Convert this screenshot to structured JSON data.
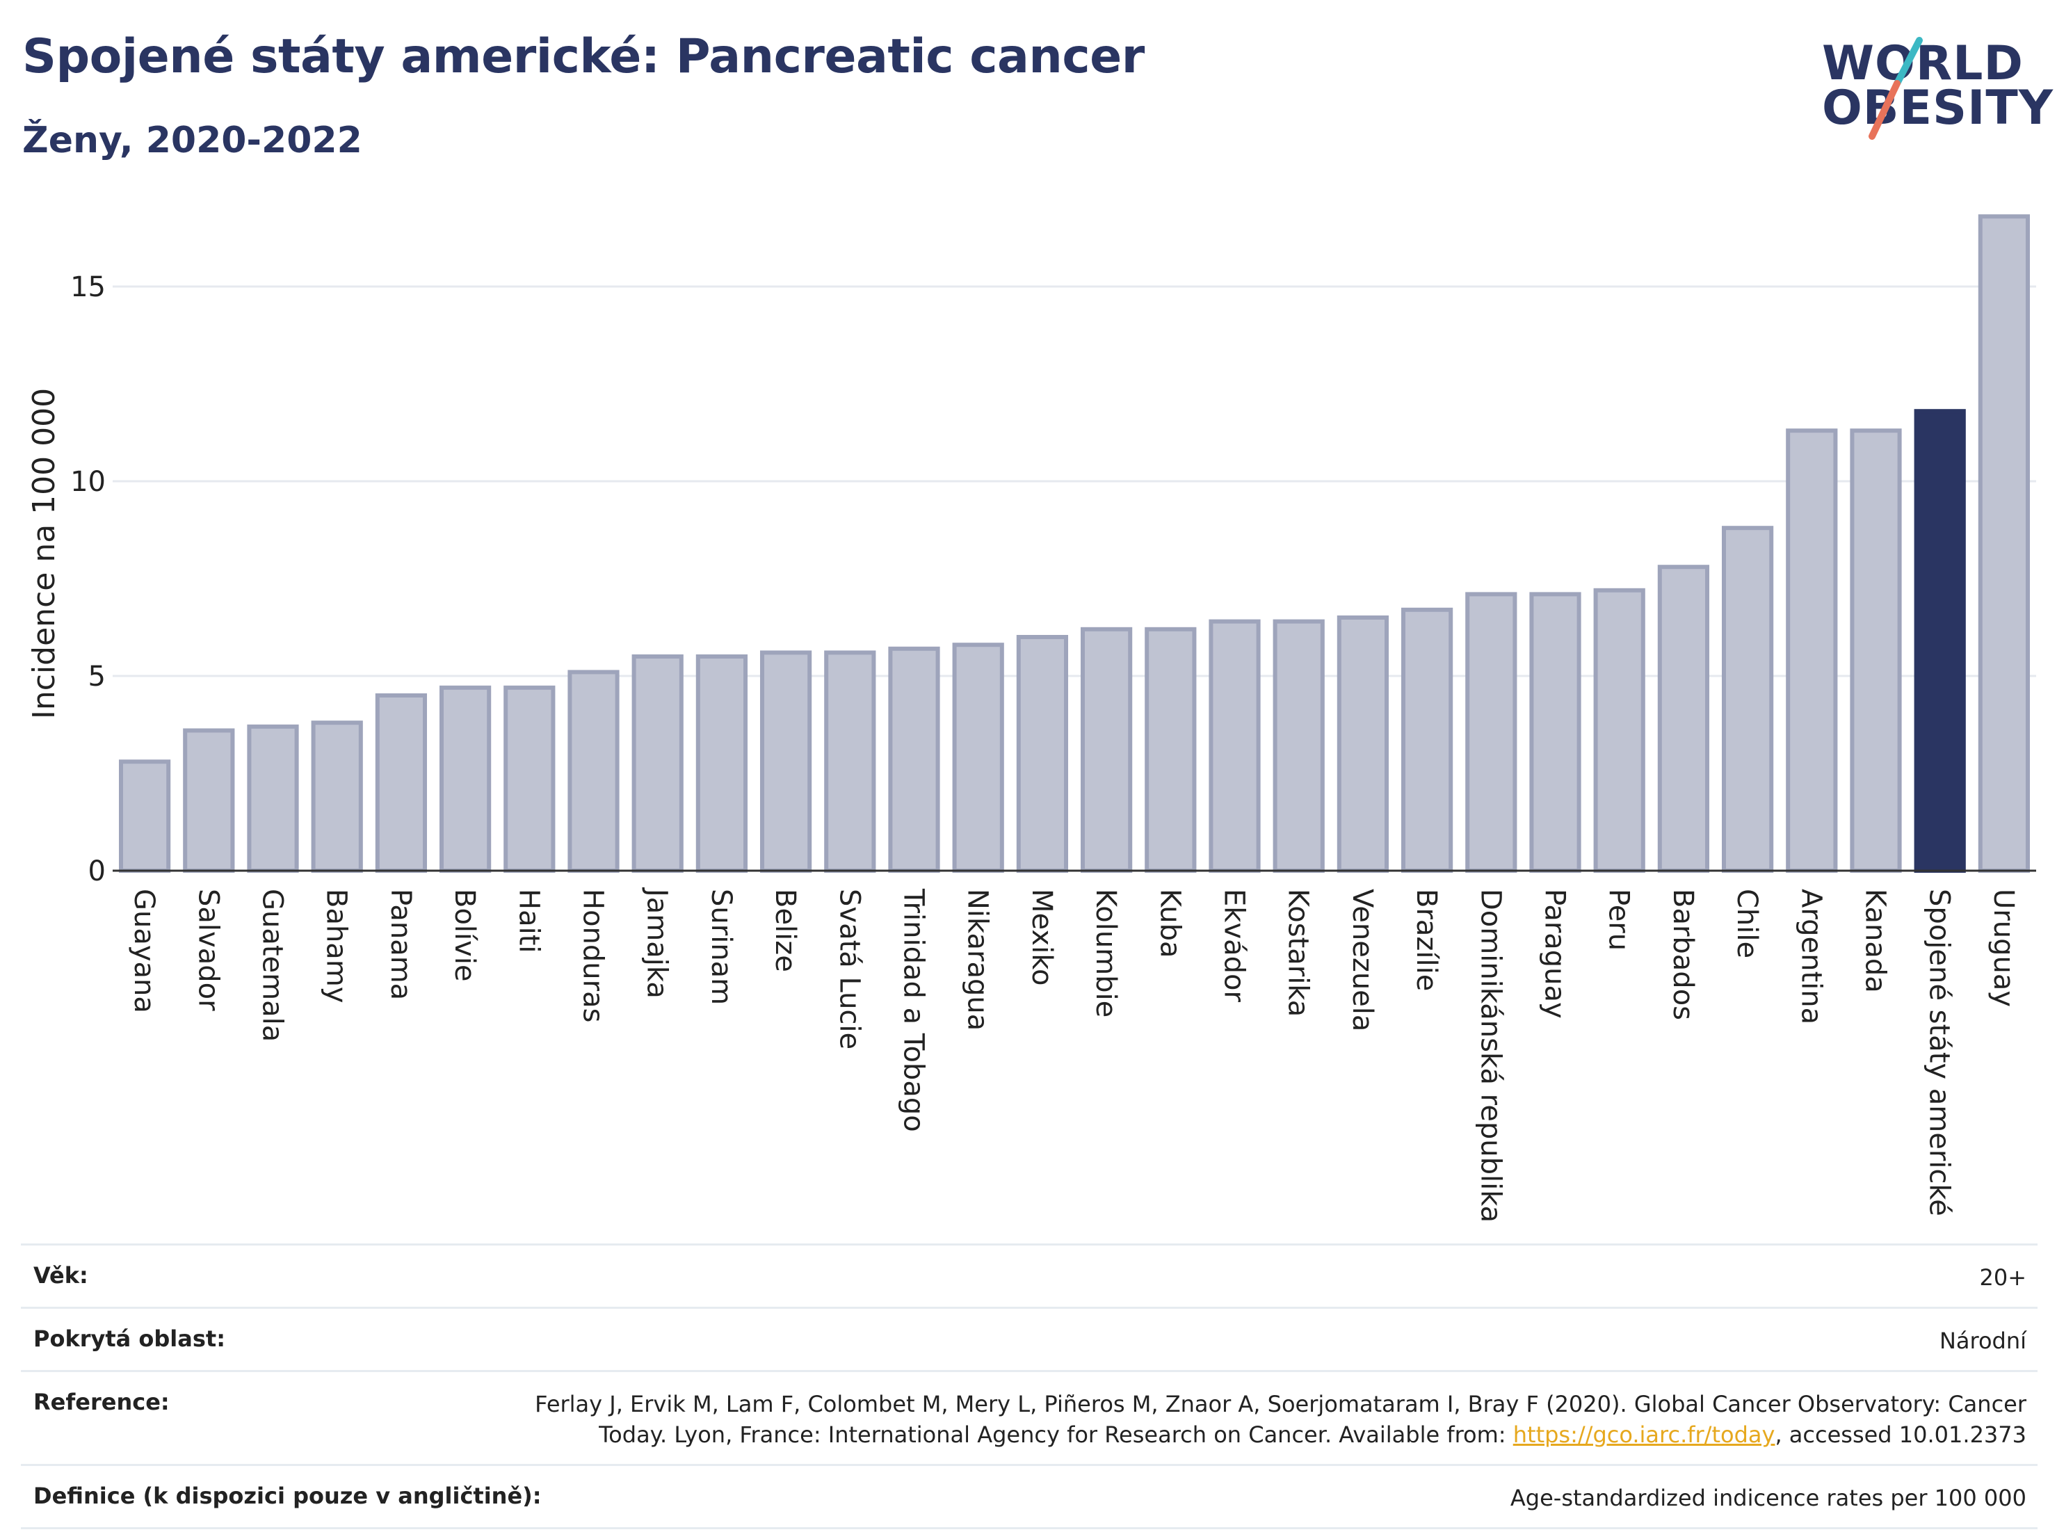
{
  "header": {
    "title": "Spojené státy americké: Pancreatic cancer",
    "subtitle": "Ženy, 2020-2022"
  },
  "logo": {
    "line1": "WORLD",
    "line2": "OBESITY",
    "slash_colors": [
      "#3cb8c4",
      "#e8735a"
    ]
  },
  "colors": {
    "bar_default": "#bfc3d2",
    "bar_border": "#9ea4bb",
    "bar_highlight": "#2a3562",
    "gridline": "#e6e9ef"
  },
  "chart_data": {
    "type": "bar",
    "categories": [
      "Guayana",
      "Salvador",
      "Guatemala",
      "Bahamy",
      "Panama",
      "Bolívie",
      "Haiti",
      "Honduras",
      "Jamajka",
      "Surinam",
      "Belize",
      "Svatá Lucie",
      "Trinidad a Tobago",
      "Nikaragua",
      "Mexiko",
      "Kolumbie",
      "Kuba",
      "Ekvádor",
      "Kostarika",
      "Venezuela",
      "Brazílie",
      "Dominikánská republika",
      "Paraguay",
      "Peru",
      "Barbados",
      "Chile",
      "Argentina",
      "Kanada",
      "Spojené státy americké",
      "Uruguay"
    ],
    "values": [
      2.8,
      3.6,
      3.7,
      3.8,
      4.5,
      4.7,
      4.7,
      5.1,
      5.5,
      5.5,
      5.6,
      5.6,
      5.7,
      5.8,
      6.0,
      6.2,
      6.2,
      6.4,
      6.4,
      6.5,
      6.7,
      7.1,
      7.1,
      7.2,
      7.8,
      8.8,
      11.3,
      11.3,
      11.8,
      16.8
    ],
    "highlight": "Spojené státy americké",
    "ylabel": "Incidence na 100 000",
    "xlabel": "",
    "ylim": [
      0,
      17
    ],
    "yticks": [
      0,
      5,
      10,
      15
    ],
    "grid": true
  },
  "meta": {
    "rows": [
      {
        "label": "Věk:",
        "value": "20+"
      },
      {
        "label": "Pokrytá oblast:",
        "value": "Národní"
      },
      {
        "label": "Reference:",
        "value_before": "Ferlay J, Ervik M, Lam F, Colombet M, Mery L, Piñeros M, Znaor A, Soerjomataram I, Bray F (2020). Global Cancer Observatory: Cancer Today. Lyon, France: International Agency for Research on Cancer. Available from: ",
        "link": "https://gco.iarc.fr/today",
        "value_after": ", accessed 10.01.2373"
      },
      {
        "label": "Definice (k dispozici pouze v angličtině):",
        "value": "Age-standardized indicence rates per 100 000"
      }
    ]
  }
}
